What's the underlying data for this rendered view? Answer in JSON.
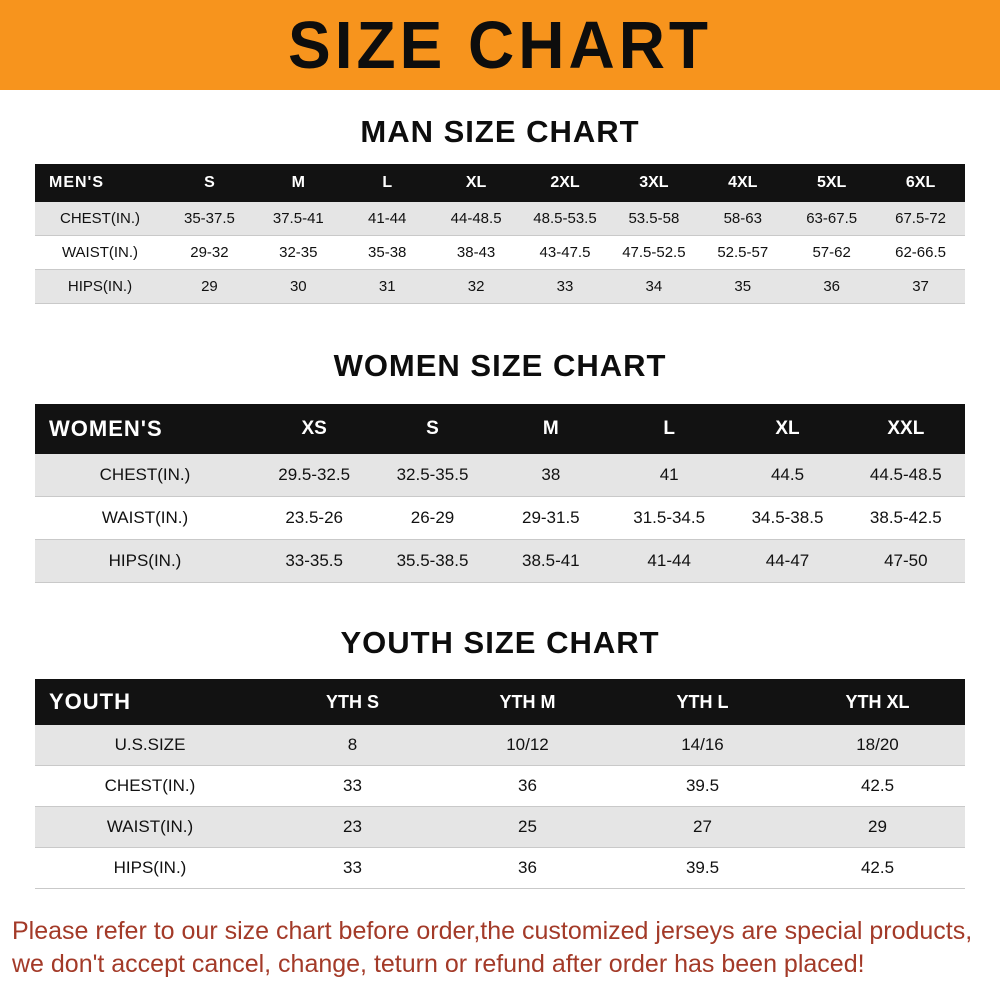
{
  "banner": {
    "title": "SIZE CHART"
  },
  "men": {
    "heading": "MAN SIZE CHART",
    "header": [
      "MEN'S",
      "S",
      "M",
      "L",
      "XL",
      "2XL",
      "3XL",
      "4XL",
      "5XL",
      "6XL"
    ],
    "rows": [
      [
        "CHEST(IN.)",
        "35-37.5",
        "37.5-41",
        "41-44",
        "44-48.5",
        "48.5-53.5",
        "53.5-58",
        "58-63",
        "63-67.5",
        "67.5-72"
      ],
      [
        "WAIST(IN.)",
        "29-32",
        "32-35",
        "35-38",
        "38-43",
        "43-47.5",
        "47.5-52.5",
        "52.5-57",
        "57-62",
        "62-66.5"
      ],
      [
        "HIPS(IN.)",
        "29",
        "30",
        "31",
        "32",
        "33",
        "34",
        "35",
        "36",
        "37"
      ]
    ]
  },
  "women": {
    "heading": "WOMEN SIZE CHART",
    "header": [
      "WOMEN'S",
      "XS",
      "S",
      "M",
      "L",
      "XL",
      "XXL"
    ],
    "rows": [
      [
        "CHEST(IN.)",
        "29.5-32.5",
        "32.5-35.5",
        "38",
        "41",
        "44.5",
        "44.5-48.5"
      ],
      [
        "WAIST(IN.)",
        "23.5-26",
        "26-29",
        "29-31.5",
        "31.5-34.5",
        "34.5-38.5",
        "38.5-42.5"
      ],
      [
        "HIPS(IN.)",
        "33-35.5",
        "35.5-38.5",
        "38.5-41",
        "41-44",
        "44-47",
        "47-50"
      ]
    ]
  },
  "youth": {
    "heading": "YOUTH SIZE CHART",
    "header": [
      "YOUTH",
      "YTH S",
      "YTH M",
      "YTH L",
      "YTH XL"
    ],
    "rows": [
      [
        "U.S.SIZE",
        "8",
        "10/12",
        "14/16",
        "18/20"
      ],
      [
        "CHEST(IN.)",
        "33",
        "36",
        "39.5",
        "42.5"
      ],
      [
        "WAIST(IN.)",
        "23",
        "25",
        "27",
        "29"
      ],
      [
        "HIPS(IN.)",
        "33",
        "36",
        "39.5",
        "42.5"
      ]
    ]
  },
  "footer": {
    "line1": "Please refer to our size chart before order,the customized jerseys are special products,",
    "line2": "we don't accept cancel, change, teturn or refund after order has been placed!"
  },
  "colors": {
    "banner_bg": "#F7941D",
    "table_header_bg": "#121212",
    "row_alt_bg": "#E5E5E5",
    "footer_text": "#A33A28"
  }
}
